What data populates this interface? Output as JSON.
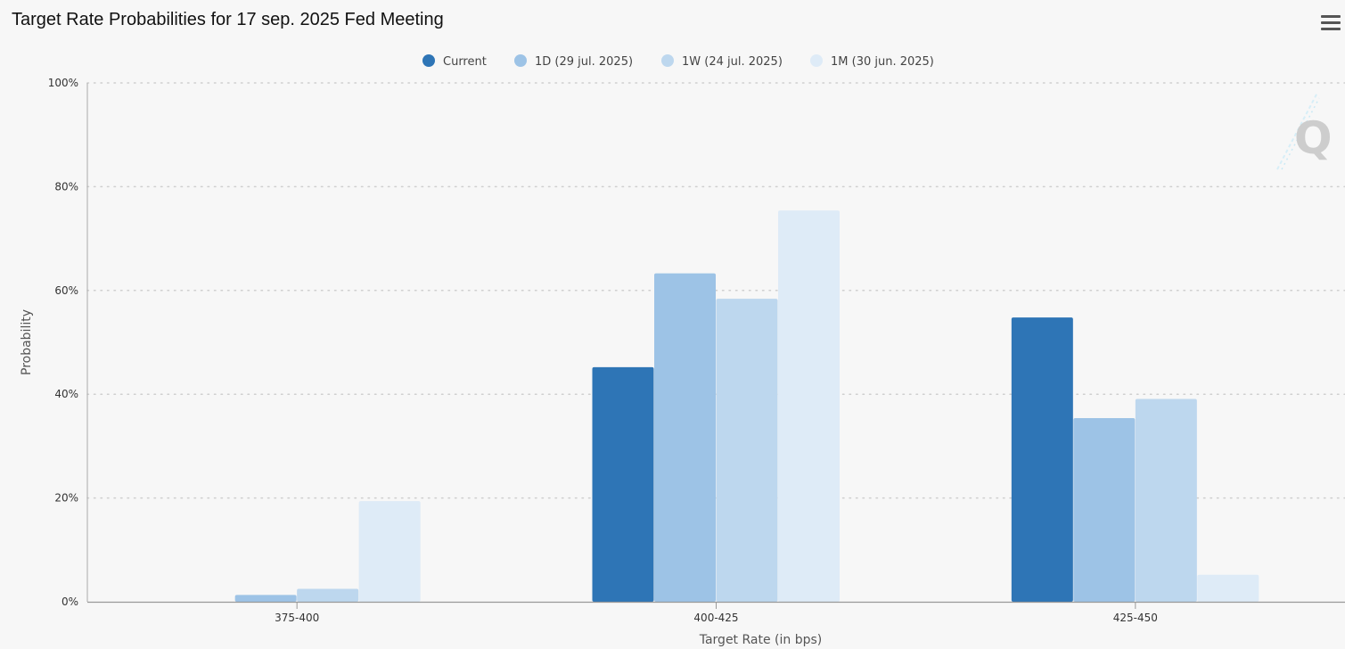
{
  "title": "Target Rate Probabilities for 17 sep. 2025 Fed Meeting",
  "chart_data": {
    "type": "bar",
    "categories": [
      "375-400",
      "400-425",
      "425-450"
    ],
    "series": [
      {
        "name": "Current",
        "color": "#2e75b6",
        "values": [
          0,
          45.2,
          54.8
        ]
      },
      {
        "name": "1D (29 jul. 2025)",
        "color": "#9dc3e6",
        "values": [
          1.3,
          63.3,
          35.4
        ]
      },
      {
        "name": "1W (24 jul. 2025)",
        "color": "#bdd7ee",
        "values": [
          2.5,
          58.4,
          39.1
        ]
      },
      {
        "name": "1M (30 jun. 2025)",
        "color": "#deebf7",
        "values": [
          19.4,
          75.4,
          5.2
        ]
      }
    ],
    "yticks": [
      "0%",
      "20%",
      "40%",
      "60%",
      "80%",
      "100%"
    ],
    "ylim": [
      0,
      100
    ],
    "xlabel": "Target Rate (in bps)",
    "ylabel": "Probability",
    "grid": true,
    "legend_position": "top-center"
  }
}
